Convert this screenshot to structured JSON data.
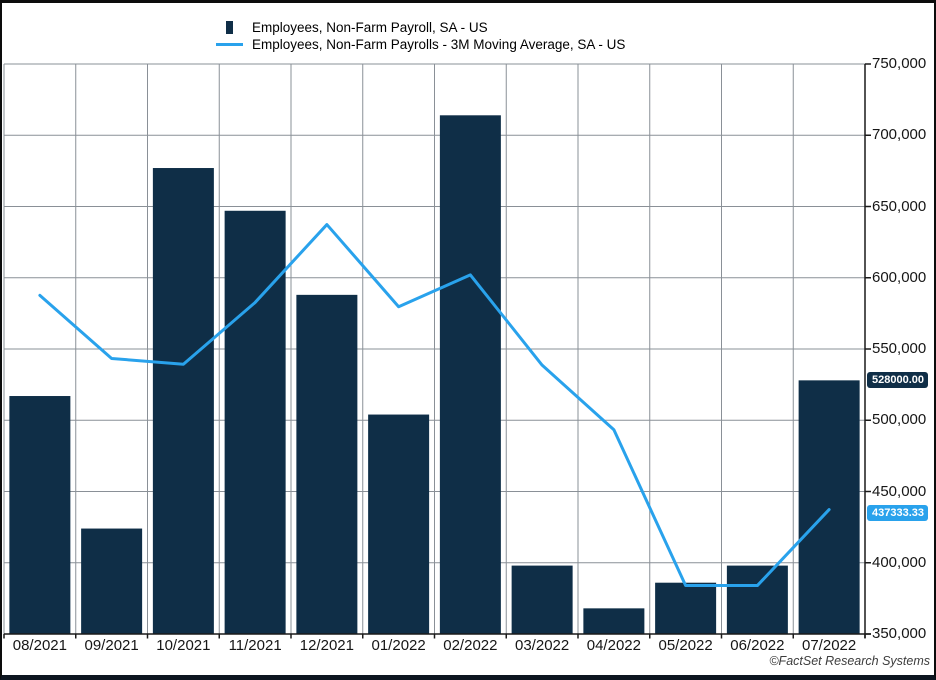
{
  "legend": {
    "series1_label": "Employees, Non-Farm Payroll, SA - US",
    "series2_label": "Employees, Non-Farm Payrolls - 3M Moving Average, SA - US"
  },
  "footer": {
    "credit": "©FactSet Research Systems"
  },
  "chart_data": {
    "type": "bar",
    "title": "",
    "categories": [
      "08/2021",
      "09/2021",
      "10/2021",
      "11/2021",
      "12/2021",
      "01/2022",
      "02/2022",
      "03/2022",
      "04/2022",
      "05/2022",
      "06/2022",
      "07/2022"
    ],
    "series": [
      {
        "name": "Employees, Non-Farm Payroll, SA - US",
        "type": "bar",
        "color": "#0f2e47",
        "values": [
          517000,
          424000,
          677000,
          647000,
          588000,
          504000,
          714000,
          398000,
          368000,
          386000,
          398000,
          528000
        ]
      },
      {
        "name": "Employees, Non-Farm Payrolls - 3M Moving Average, SA - US",
        "type": "line",
        "color": "#29a2ec",
        "values": [
          587666.67,
          543333.33,
          539333.33,
          582666.67,
          637333.33,
          579666.67,
          602000,
          538666.67,
          493333.33,
          384000,
          384000,
          437333.33
        ]
      }
    ],
    "ylim": [
      350000,
      750000
    ],
    "ytick_step": 50000,
    "ytick_labels": [
      "750,000",
      "700,000",
      "650,000",
      "600,000",
      "550,000",
      "500,000",
      "450,000",
      "400,000",
      "350,000"
    ],
    "yaxis_side": "right",
    "grid": true,
    "legend_position": "top-left",
    "last_value_labels": [
      {
        "text": "528000.00",
        "color": "#0f2e47",
        "series": "bar"
      },
      {
        "text": "437333.33",
        "color": "#29a2ec",
        "series": "line"
      }
    ]
  }
}
